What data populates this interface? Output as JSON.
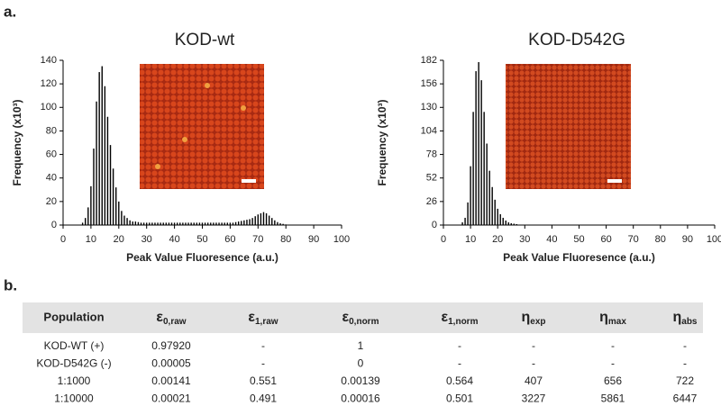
{
  "panel_labels": [
    "a.",
    "b."
  ],
  "chart_data": [
    {
      "type": "bar",
      "title": "KOD-wt",
      "ylabel": "Frequency (x10³)",
      "xlabel": "Peak Value Fluoresence (a.u.)",
      "color": "#000000",
      "x": [
        7,
        8,
        9,
        10,
        11,
        12,
        13,
        14,
        15,
        16,
        17,
        18,
        19,
        20,
        21,
        22,
        23,
        24,
        25,
        26,
        27,
        28,
        29,
        30,
        31,
        32,
        33,
        34,
        35,
        36,
        37,
        38,
        39,
        40,
        41,
        42,
        43,
        44,
        45,
        46,
        47,
        48,
        49,
        50,
        51,
        52,
        53,
        54,
        55,
        56,
        57,
        58,
        59,
        60,
        61,
        62,
        63,
        64,
        65,
        66,
        67,
        68,
        69,
        70,
        71,
        72,
        73,
        74,
        75,
        76,
        77,
        78,
        79,
        80
      ],
      "values": [
        2,
        6,
        15,
        33,
        65,
        105,
        130,
        135,
        118,
        92,
        68,
        48,
        32,
        20,
        12,
        8,
        6,
        4,
        3,
        3,
        2.5,
        2,
        2,
        2,
        2,
        2,
        2,
        2,
        2,
        2,
        2,
        2,
        2,
        2,
        2,
        2,
        2,
        2,
        2,
        2,
        2,
        2,
        2,
        2,
        2,
        2,
        2,
        2,
        2,
        2,
        2,
        2,
        2,
        2,
        2,
        2.5,
        3,
        3.5,
        4,
        4.5,
        5,
        6,
        7.5,
        9,
        10,
        11,
        10,
        8,
        6,
        4,
        2.5,
        1.5,
        1,
        0.5
      ],
      "xlim": [
        0,
        100
      ],
      "xticks": [
        0,
        10,
        20,
        30,
        40,
        50,
        60,
        70,
        80,
        90,
        100
      ],
      "ylim": [
        0,
        140
      ],
      "yticks": [
        0,
        20,
        40,
        60,
        80,
        100,
        120,
        140
      ]
    },
    {
      "type": "bar",
      "title": "KOD-D542G",
      "ylabel": "Frequency (x10³)",
      "xlabel": "Peak Value Fluoresence (a.u.)",
      "color": "#000000",
      "x": [
        7,
        8,
        9,
        10,
        11,
        12,
        13,
        14,
        15,
        16,
        17,
        18,
        19,
        20,
        21,
        22,
        23,
        24,
        25,
        26,
        27,
        28
      ],
      "values": [
        3,
        8,
        25,
        65,
        125,
        170,
        180,
        160,
        125,
        90,
        60,
        42,
        28,
        18,
        12,
        8,
        5,
        3,
        2,
        1.5,
        1,
        0.5
      ],
      "xlim": [
        0,
        100
      ],
      "xticks": [
        0,
        10,
        20,
        30,
        40,
        50,
        60,
        70,
        80,
        90,
        100
      ],
      "ylim": [
        0,
        182
      ],
      "yticks": [
        0,
        26,
        52,
        78,
        104,
        130,
        156,
        182
      ]
    }
  ],
  "table": {
    "header": [
      "Population",
      {
        "symbol": "ε",
        "sub": "0,raw"
      },
      {
        "symbol": "ε",
        "sub": "1,raw"
      },
      {
        "symbol": "ε",
        "sub": "0,norm"
      },
      {
        "symbol": "ε",
        "sub": "1,norm"
      },
      {
        "symbol": "η",
        "sub": "exp"
      },
      {
        "symbol": "η",
        "sub": "max"
      },
      {
        "symbol": "η",
        "sub": "abs"
      }
    ],
    "rows": [
      [
        "KOD-WT (+)",
        "0.97920",
        "-",
        "1",
        "-",
        "-",
        "-",
        "-"
      ],
      [
        "KOD-D542G (-)",
        "0.00005",
        "-",
        "0",
        "-",
        "-",
        "-",
        "-"
      ],
      [
        "1:1000",
        "0.00141",
        "0.551",
        "0.00139",
        "0.564",
        "407",
        "656",
        "722"
      ],
      [
        "1:10000",
        "0.00021",
        "0.491",
        "0.00016",
        "0.501",
        "3227",
        "5861",
        "6447"
      ]
    ]
  }
}
